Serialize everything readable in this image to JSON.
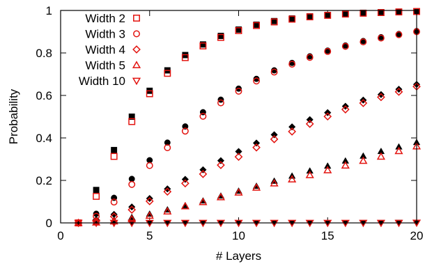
{
  "chart_data": {
    "type": "scatter",
    "xlabel": "# Layers",
    "ylabel": "Probability",
    "xlim": [
      0,
      20
    ],
    "ylim": [
      0,
      1
    ],
    "xticks": [
      0,
      5,
      10,
      15,
      20
    ],
    "yticks": [
      0,
      0.2,
      0.4,
      0.6,
      0.8,
      1
    ],
    "xtick_labels": [
      "0",
      "5",
      "10",
      "15",
      "20"
    ],
    "ytick_labels": [
      "0",
      "0.2",
      "0.4",
      "0.6",
      "0.8",
      "1"
    ],
    "grid": false,
    "legend_position": "top-left",
    "x": [
      1,
      2,
      3,
      4,
      5,
      6,
      7,
      8,
      9,
      10,
      11,
      12,
      13,
      14,
      15,
      16,
      17,
      18,
      19,
      20
    ],
    "series": [
      {
        "name": "Width 2",
        "marker": "square",
        "color": "#e3130f",
        "values": [
          0.0,
          0.125,
          0.313,
          0.477,
          0.608,
          0.704,
          0.778,
          0.833,
          0.873,
          0.905,
          0.929,
          0.946,
          0.959,
          0.97,
          0.977,
          0.983,
          0.987,
          0.99,
          0.993,
          0.995
        ],
        "reference": [
          0.0,
          0.155,
          0.343,
          0.5,
          0.622,
          0.718,
          0.79,
          0.84,
          0.88,
          0.91,
          0.933,
          0.95,
          0.962,
          0.972,
          0.979,
          0.985,
          0.989,
          0.992,
          0.994,
          0.996
        ]
      },
      {
        "name": "Width 3",
        "marker": "circle",
        "color": "#e3130f",
        "values": [
          0.0,
          0.031,
          0.098,
          0.181,
          0.27,
          0.354,
          0.432,
          0.502,
          0.565,
          0.62,
          0.668,
          0.71,
          0.747,
          0.779,
          0.807,
          0.831,
          0.852,
          0.87,
          0.886,
          0.9
        ],
        "reference": [
          0.0,
          0.043,
          0.118,
          0.207,
          0.295,
          0.378,
          0.454,
          0.521,
          0.58,
          0.632,
          0.678,
          0.718,
          0.753,
          0.784,
          0.811,
          0.835,
          0.856,
          0.874,
          0.889,
          0.903
        ]
      },
      {
        "name": "Width 4",
        "marker": "diamond",
        "color": "#e3130f",
        "values": [
          0.0,
          0.008,
          0.03,
          0.062,
          0.102,
          0.147,
          0.186,
          0.23,
          0.272,
          0.311,
          0.355,
          0.394,
          0.43,
          0.466,
          0.501,
          0.534,
          0.564,
          0.592,
          0.617,
          0.642
        ],
        "reference": [
          0.0,
          0.015,
          0.04,
          0.075,
          0.115,
          0.16,
          0.205,
          0.25,
          0.293,
          0.336,
          0.376,
          0.415,
          0.452,
          0.486,
          0.519,
          0.549,
          0.578,
          0.604,
          0.629,
          0.652
        ]
      },
      {
        "name": "Width 5",
        "marker": "triangle-up",
        "color": "#e3130f",
        "values": [
          0.0,
          0.002,
          0.007,
          0.018,
          0.034,
          0.054,
          0.078,
          0.098,
          0.121,
          0.143,
          0.166,
          0.186,
          0.205,
          0.225,
          0.248,
          0.27,
          0.292,
          0.312,
          0.338,
          0.36
        ],
        "reference": [
          0.0,
          0.005,
          0.014,
          0.026,
          0.042,
          0.062,
          0.082,
          0.104,
          0.127,
          0.15,
          0.173,
          0.197,
          0.221,
          0.245,
          0.268,
          0.292,
          0.315,
          0.337,
          0.358,
          0.379
        ]
      },
      {
        "name": "Width 10",
        "marker": "triangle-down",
        "color": "#e3130f",
        "values": [
          0.0,
          0.0,
          0.0,
          0.0,
          0.0,
          0.0,
          0.0,
          0.0,
          0.0,
          0.0,
          0.0,
          0.0,
          0.0,
          0.0,
          0.0,
          0.0,
          0.0,
          0.0,
          0.0,
          0.001
        ],
        "reference": [
          0.0,
          0.0,
          0.0,
          0.0,
          0.0,
          0.0,
          0.0,
          0.0,
          0.0,
          0.0,
          0.0,
          0.0,
          0.0,
          0.0,
          0.0,
          0.0,
          0.001,
          0.001,
          0.002,
          0.002
        ]
      }
    ],
    "colors": {
      "series": "#e3130f",
      "reference": "#000000",
      "axes": "#000000"
    }
  }
}
